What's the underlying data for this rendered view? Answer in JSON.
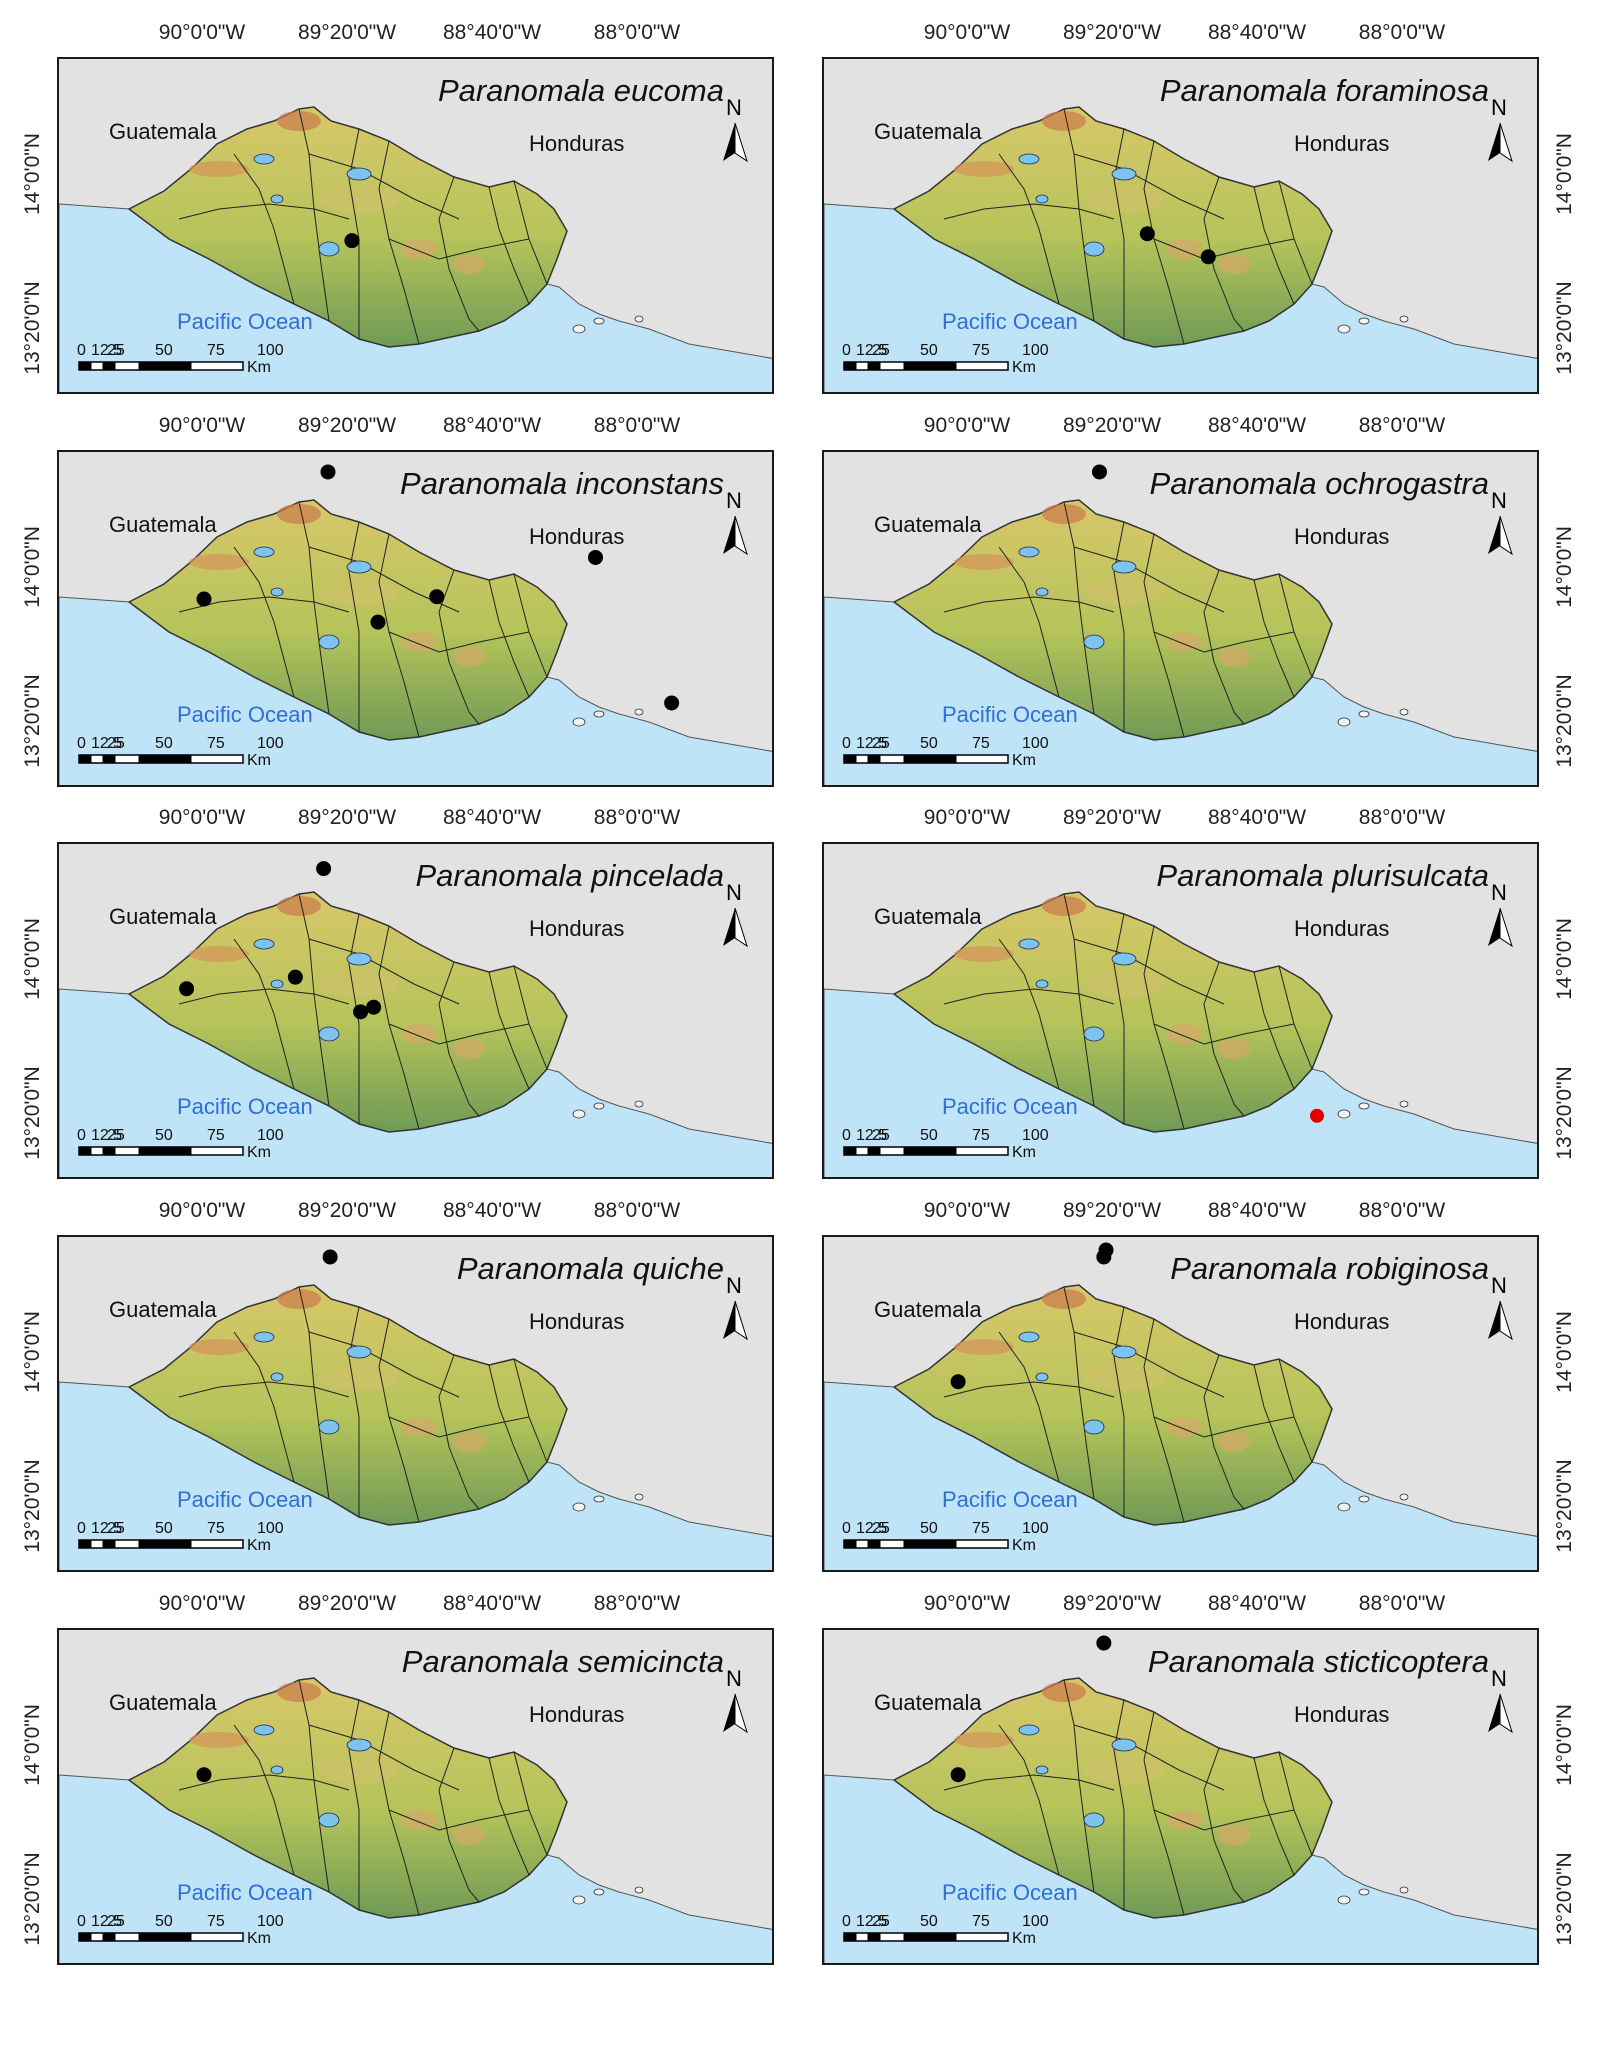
{
  "longitude_labels": [
    "90°0'0\"W",
    "89°20'0\"W",
    "88°40'0\"W",
    "88°0'0\"W"
  ],
  "latitude_labels": [
    "14°0'0\"N",
    "13°20'0\"N"
  ],
  "labels": {
    "guatemala": "Guatemala",
    "honduras": "Honduras",
    "ocean": "Pacific Ocean",
    "north": "N"
  },
  "scale_bar": {
    "ticks": [
      "0",
      "12.5",
      "25",
      "50",
      "75",
      "100"
    ],
    "unit": "Km"
  },
  "colors": {
    "ocean": "#bfe3f7",
    "land_base": "#b5c45a",
    "land_high": "#d8c76a",
    "coastal": "#6f9a55",
    "outside": "#e2e2e2",
    "record_black": "#000000",
    "record_red": "#e00000"
  },
  "maps": [
    {
      "species": "Paranomala eucoma",
      "records": [
        {
          "lon": -89.32,
          "lat": 13.72
        }
      ]
    },
    {
      "species": "Paranomala foraminosa",
      "records": [
        {
          "lon": -89.18,
          "lat": 13.75
        },
        {
          "lon": -88.9,
          "lat": 13.65
        }
      ]
    },
    {
      "species": "Paranomala inconstans",
      "records": [
        {
          "lon": -89.43,
          "lat": 14.42
        },
        {
          "lon": -90.0,
          "lat": 13.87
        },
        {
          "lon": -89.2,
          "lat": 13.77
        },
        {
          "lon": -88.93,
          "lat": 13.88
        },
        {
          "lon": -88.2,
          "lat": 14.05
        },
        {
          "lon": -87.85,
          "lat": 13.42
        }
      ]
    },
    {
      "species": "Paranomala ochrogastra",
      "records": [
        {
          "lon": -89.4,
          "lat": 14.42
        }
      ]
    },
    {
      "species": "Paranomala pincelada",
      "records": [
        {
          "lon": -89.45,
          "lat": 14.4
        },
        {
          "lon": -90.08,
          "lat": 13.88
        },
        {
          "lon": -89.58,
          "lat": 13.93
        },
        {
          "lon": -89.28,
          "lat": 13.78
        },
        {
          "lon": -89.22,
          "lat": 13.8
        }
      ]
    },
    {
      "species": "Paranomala plurisulcata",
      "records": [
        {
          "lon": -88.4,
          "lat": 13.33
        }
      ],
      "red": true
    },
    {
      "species": "Paranomala quiche",
      "records": [
        {
          "lon": -89.42,
          "lat": 14.42
        }
      ]
    },
    {
      "species": "Paranomala robiginosa",
      "records": [
        {
          "lon": -89.38,
          "lat": 14.42
        },
        {
          "lon": -89.37,
          "lat": 14.45
        },
        {
          "lon": -90.05,
          "lat": 13.88
        }
      ]
    },
    {
      "species": "Paranomala semicincta",
      "records": [
        {
          "lon": -90.0,
          "lat": 13.88
        }
      ]
    },
    {
      "species": "Paranomala sticticoptera",
      "records": [
        {
          "lon": -89.38,
          "lat": 14.45
        },
        {
          "lon": -90.05,
          "lat": 13.88
        }
      ]
    }
  ]
}
